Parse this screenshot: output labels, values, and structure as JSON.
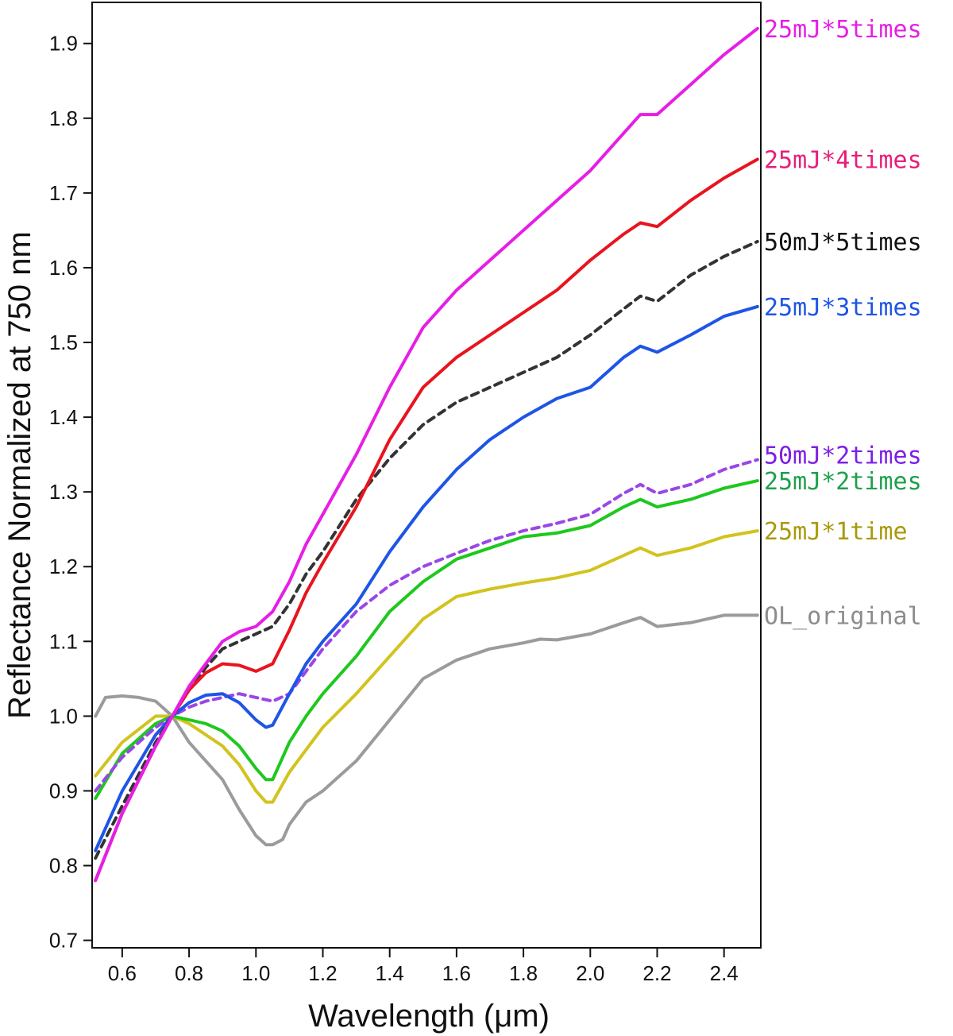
{
  "chart_data": {
    "type": "line",
    "xlabel": "Wavelength (μm)",
    "ylabel": "Reflectance Normalized at 750 nm",
    "xlim": [
      0.51,
      2.51
    ],
    "ylim": [
      0.69,
      1.955
    ],
    "xticks": [
      0.6,
      0.8,
      1.0,
      1.2,
      1.4,
      1.6,
      1.8,
      2.0,
      2.2,
      2.4
    ],
    "xtick_labels": [
      "0.6",
      "0.8",
      "1.0",
      "1.2",
      "1.4",
      "1.6",
      "1.8",
      "2.0",
      "2.2",
      "2.4"
    ],
    "yticks": [
      0.7,
      0.8,
      0.9,
      1.0,
      1.1,
      1.2,
      1.3,
      1.4,
      1.5,
      1.6,
      1.7,
      1.8,
      1.9
    ],
    "ytick_labels": [
      "0.7",
      "0.8",
      "0.9",
      "1.0",
      "1.1",
      "1.2",
      "1.3",
      "1.4",
      "1.5",
      "1.6",
      "1.7",
      "1.8",
      "1.9"
    ],
    "grid": false,
    "legend": "inline-right",
    "series": [
      {
        "name": "25mJ*5times",
        "color": "#e61ee6",
        "label_color": "#e61ee6",
        "dashed": false,
        "x": [
          0.52,
          0.6,
          0.7,
          0.75,
          0.8,
          0.85,
          0.9,
          0.95,
          1.0,
          1.05,
          1.1,
          1.15,
          1.2,
          1.3,
          1.4,
          1.5,
          1.6,
          1.7,
          1.8,
          1.9,
          2.0,
          2.1,
          2.15,
          2.2,
          2.3,
          2.4,
          2.5
        ],
        "y": [
          0.78,
          0.87,
          0.96,
          1.0,
          1.04,
          1.07,
          1.1,
          1.113,
          1.12,
          1.14,
          1.18,
          1.23,
          1.27,
          1.35,
          1.44,
          1.52,
          1.57,
          1.61,
          1.65,
          1.69,
          1.73,
          1.78,
          1.805,
          1.805,
          1.845,
          1.885,
          1.92
        ]
      },
      {
        "name": "25mJ*4times",
        "color": "#e8141e",
        "label_color": "#e81e78",
        "dashed": false,
        "x": [
          0.52,
          0.6,
          0.7,
          0.75,
          0.8,
          0.85,
          0.9,
          0.95,
          1.0,
          1.05,
          1.1,
          1.15,
          1.2,
          1.3,
          1.4,
          1.5,
          1.6,
          1.7,
          1.8,
          1.9,
          2.0,
          2.1,
          2.15,
          2.2,
          2.3,
          2.4,
          2.5
        ],
        "y": [
          0.78,
          0.87,
          0.96,
          1.0,
          1.035,
          1.058,
          1.07,
          1.068,
          1.06,
          1.07,
          1.115,
          1.165,
          1.205,
          1.28,
          1.37,
          1.44,
          1.48,
          1.51,
          1.54,
          1.57,
          1.61,
          1.645,
          1.66,
          1.655,
          1.69,
          1.72,
          1.745
        ]
      },
      {
        "name": "50mJ*5times",
        "color": "#333333",
        "label_color": "#111111",
        "dashed": true,
        "x": [
          0.52,
          0.6,
          0.7,
          0.75,
          0.8,
          0.85,
          0.9,
          0.95,
          1.0,
          1.05,
          1.1,
          1.15,
          1.2,
          1.3,
          1.4,
          1.5,
          1.6,
          1.7,
          1.8,
          1.9,
          2.0,
          2.1,
          2.15,
          2.2,
          2.3,
          2.4,
          2.5
        ],
        "y": [
          0.81,
          0.88,
          0.965,
          1.0,
          1.035,
          1.065,
          1.09,
          1.1,
          1.11,
          1.12,
          1.15,
          1.19,
          1.22,
          1.29,
          1.345,
          1.39,
          1.42,
          1.44,
          1.46,
          1.48,
          1.51,
          1.545,
          1.562,
          1.555,
          1.59,
          1.615,
          1.635
        ]
      },
      {
        "name": "25mJ*3times",
        "color": "#1e55e6",
        "label_color": "#1e55e6",
        "dashed": false,
        "x": [
          0.52,
          0.6,
          0.7,
          0.75,
          0.8,
          0.85,
          0.9,
          0.95,
          1.0,
          1.03,
          1.05,
          1.1,
          1.15,
          1.2,
          1.3,
          1.4,
          1.5,
          1.6,
          1.7,
          1.8,
          1.9,
          2.0,
          2.1,
          2.15,
          2.2,
          2.3,
          2.4,
          2.5
        ],
        "y": [
          0.82,
          0.9,
          0.975,
          1.0,
          1.018,
          1.028,
          1.03,
          1.018,
          0.995,
          0.985,
          0.988,
          1.03,
          1.07,
          1.1,
          1.15,
          1.22,
          1.28,
          1.33,
          1.37,
          1.4,
          1.425,
          1.44,
          1.48,
          1.495,
          1.487,
          1.51,
          1.535,
          1.548
        ]
      },
      {
        "name": "50mJ*2times",
        "color": "#9a46e8",
        "label_color": "#7d1ee6",
        "dashed": true,
        "x": [
          0.52,
          0.6,
          0.7,
          0.75,
          0.8,
          0.85,
          0.9,
          0.95,
          1.0,
          1.05,
          1.1,
          1.15,
          1.2,
          1.3,
          1.4,
          1.5,
          1.6,
          1.7,
          1.8,
          1.9,
          2.0,
          2.1,
          2.15,
          2.2,
          2.3,
          2.4,
          2.5
        ],
        "y": [
          0.9,
          0.945,
          0.985,
          1.0,
          1.012,
          1.02,
          1.025,
          1.03,
          1.025,
          1.02,
          1.03,
          1.06,
          1.09,
          1.14,
          1.175,
          1.2,
          1.218,
          1.235,
          1.248,
          1.258,
          1.27,
          1.298,
          1.31,
          1.298,
          1.31,
          1.33,
          1.343
        ]
      },
      {
        "name": "25mJ*2times",
        "color": "#1ec81e",
        "label_color": "#1ea04b",
        "dashed": false,
        "x": [
          0.52,
          0.6,
          0.7,
          0.75,
          0.8,
          0.85,
          0.9,
          0.95,
          1.0,
          1.03,
          1.05,
          1.1,
          1.15,
          1.2,
          1.3,
          1.4,
          1.5,
          1.6,
          1.7,
          1.8,
          1.9,
          2.0,
          2.1,
          2.15,
          2.2,
          2.3,
          2.4,
          2.5
        ],
        "y": [
          0.89,
          0.95,
          0.99,
          1.0,
          0.995,
          0.99,
          0.98,
          0.96,
          0.93,
          0.915,
          0.915,
          0.965,
          1.0,
          1.03,
          1.08,
          1.14,
          1.18,
          1.21,
          1.225,
          1.24,
          1.245,
          1.255,
          1.28,
          1.29,
          1.28,
          1.29,
          1.305,
          1.315
        ]
      },
      {
        "name": "25mJ*1time",
        "color": "#d2c31e",
        "label_color": "#a89a0a",
        "dashed": false,
        "x": [
          0.52,
          0.6,
          0.7,
          0.75,
          0.8,
          0.85,
          0.9,
          0.95,
          1.0,
          1.03,
          1.05,
          1.1,
          1.15,
          1.2,
          1.3,
          1.4,
          1.5,
          1.6,
          1.7,
          1.8,
          1.9,
          2.0,
          2.1,
          2.15,
          2.2,
          2.3,
          2.4,
          2.5
        ],
        "y": [
          0.92,
          0.965,
          1.0,
          1.0,
          0.99,
          0.975,
          0.96,
          0.935,
          0.9,
          0.885,
          0.885,
          0.925,
          0.955,
          0.985,
          1.03,
          1.08,
          1.13,
          1.16,
          1.17,
          1.178,
          1.185,
          1.195,
          1.215,
          1.225,
          1.215,
          1.225,
          1.24,
          1.248
        ]
      },
      {
        "name": "OL_original",
        "color": "#9b9b9b",
        "label_color": "#8c8c8c",
        "dashed": false,
        "x": [
          0.52,
          0.55,
          0.6,
          0.65,
          0.7,
          0.75,
          0.8,
          0.85,
          0.9,
          0.95,
          1.0,
          1.03,
          1.05,
          1.08,
          1.1,
          1.15,
          1.2,
          1.3,
          1.4,
          1.5,
          1.6,
          1.7,
          1.8,
          1.85,
          1.9,
          2.0,
          2.1,
          2.15,
          2.2,
          2.3,
          2.4,
          2.5
        ],
        "y": [
          1.0,
          1.025,
          1.027,
          1.025,
          1.02,
          1.0,
          0.965,
          0.94,
          0.915,
          0.875,
          0.84,
          0.828,
          0.828,
          0.835,
          0.855,
          0.885,
          0.9,
          0.94,
          0.995,
          1.05,
          1.075,
          1.09,
          1.098,
          1.103,
          1.102,
          1.11,
          1.125,
          1.132,
          1.12,
          1.125,
          1.135,
          1.135
        ]
      }
    ]
  }
}
